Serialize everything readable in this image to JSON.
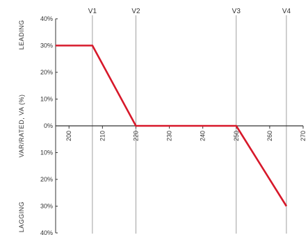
{
  "chart_data": {
    "type": "line",
    "title": "",
    "ylabel": "VAR/RATED, VA (%)",
    "region_labels": {
      "top": "LEADING",
      "bottom": "LAGGING"
    },
    "xlim": [
      196,
      270
    ],
    "ylim": [
      -40,
      40
    ],
    "x_ticks": [
      "200",
      "210",
      "220",
      "230",
      "240",
      "250",
      "260",
      "270"
    ],
    "y_ticks": [
      "40%",
      "30%",
      "20%",
      "10%",
      "0%",
      "10%",
      "20%",
      "30%",
      "40%"
    ],
    "y_tick_values": [
      40,
      30,
      20,
      10,
      0,
      -10,
      -20,
      -30,
      -40
    ],
    "reference_lines": [
      {
        "label": "V1",
        "x": 207
      },
      {
        "label": "V2",
        "x": 220
      },
      {
        "label": "V3",
        "x": 250
      },
      {
        "label": "V4",
        "x": 265
      }
    ],
    "series": [
      {
        "color": "#d7182a",
        "points": [
          {
            "x": 196,
            "y": 30
          },
          {
            "x": 207,
            "y": 30
          },
          {
            "x": 220,
            "y": 0
          },
          {
            "x": 250,
            "y": 0
          },
          {
            "x": 265,
            "y": -30
          }
        ]
      }
    ],
    "grid": false,
    "colors": {
      "axis": "#333333",
      "reference": "#888888",
      "series": "#d7182a"
    }
  }
}
